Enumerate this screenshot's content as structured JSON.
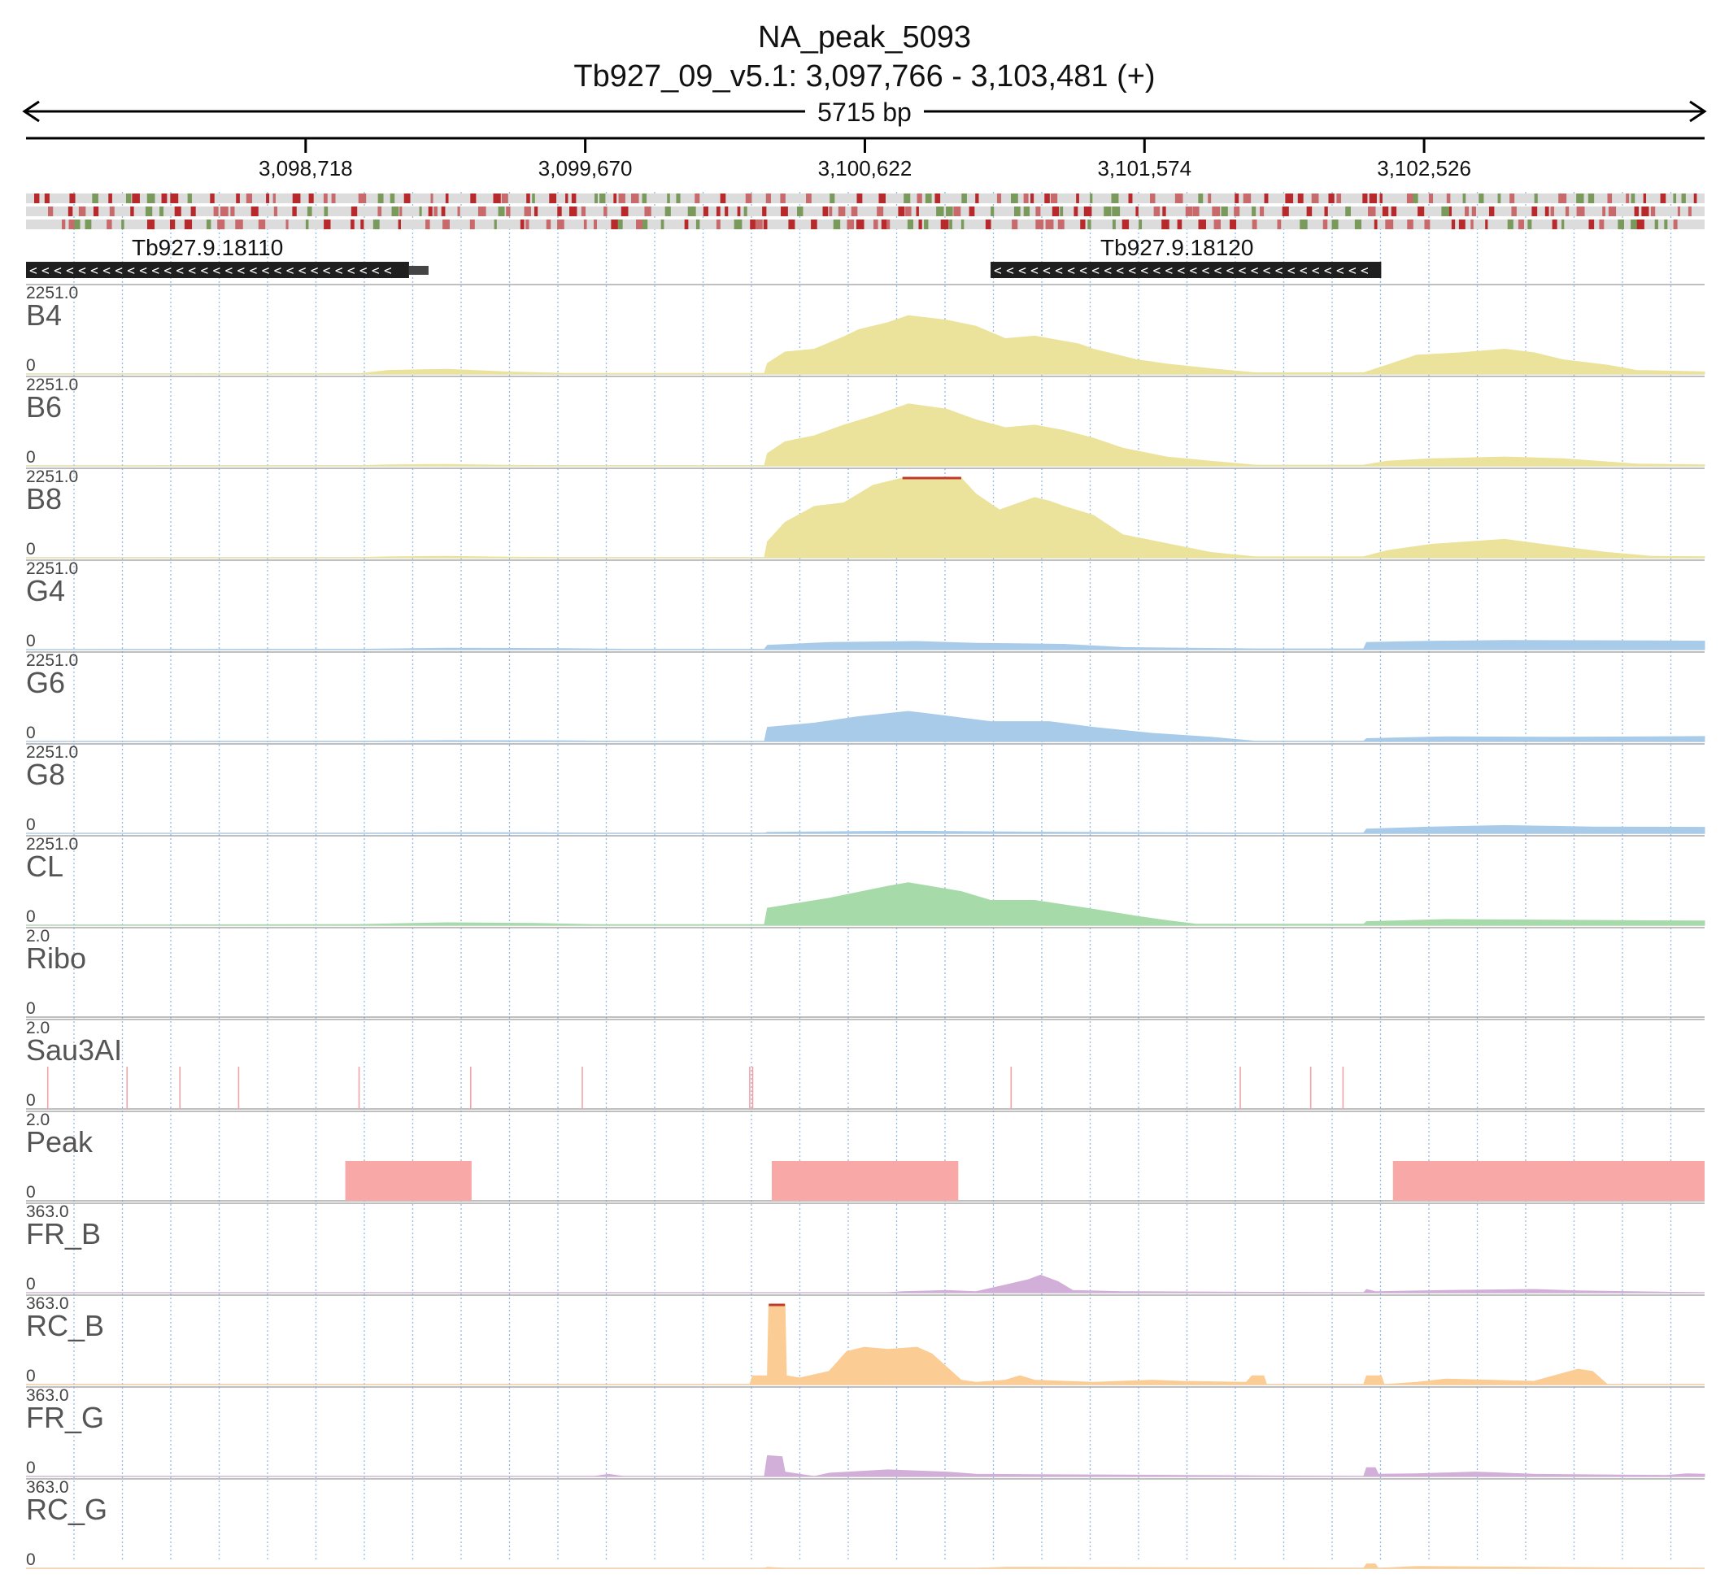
{
  "title": "NA_peak_5093",
  "region": "Tb927_09_v5.1: 3,097,766 - 3,103,481 (+)",
  "span_label": "5715 bp",
  "chart_data": {
    "type": "area",
    "genome_range": [
      3097766,
      3103481
    ],
    "ticks": [
      {
        "pos": 3098718,
        "label": "3,098,718"
      },
      {
        "pos": 3099670,
        "label": "3,099,670"
      },
      {
        "pos": 3100622,
        "label": "3,100,622"
      },
      {
        "pos": 3101574,
        "label": "3,101,574"
      },
      {
        "pos": 3102526,
        "label": "3,102,526"
      }
    ],
    "genes": [
      {
        "name": "Tb927.9.18110",
        "start": 3097766,
        "end": 3099070,
        "strand": "-"
      },
      {
        "name": "Tb927.9.18120",
        "start": 3101050,
        "end": 3102380,
        "strand": "-"
      }
    ],
    "tracks": [
      {
        "name": "B4",
        "max": "2251.0",
        "min": "0",
        "color": "#ebe39b",
        "points": [
          [
            3097766,
            0
          ],
          [
            3098900,
            10
          ],
          [
            3099000,
            100
          ],
          [
            3099200,
            130
          ],
          [
            3099400,
            60
          ],
          [
            3099600,
            15
          ],
          [
            3100280,
            15
          ],
          [
            3100290,
            300
          ],
          [
            3100350,
            620
          ],
          [
            3100450,
            700
          ],
          [
            3100550,
            1050
          ],
          [
            3100600,
            1250
          ],
          [
            3100700,
            1450
          ],
          [
            3100770,
            1650
          ],
          [
            3100900,
            1520
          ],
          [
            3101000,
            1350
          ],
          [
            3101100,
            1000
          ],
          [
            3101200,
            1070
          ],
          [
            3101350,
            850
          ],
          [
            3101400,
            700
          ],
          [
            3101500,
            500
          ],
          [
            3101550,
            400
          ],
          [
            3101650,
            280
          ],
          [
            3101800,
            150
          ],
          [
            3101950,
            35
          ],
          [
            3102320,
            35
          ],
          [
            3102400,
            250
          ],
          [
            3102500,
            530
          ],
          [
            3102650,
            600
          ],
          [
            3102800,
            700
          ],
          [
            3102900,
            600
          ],
          [
            3103000,
            400
          ],
          [
            3103150,
            250
          ],
          [
            3103250,
            100
          ],
          [
            3103481,
            60
          ]
        ]
      },
      {
        "name": "B6",
        "max": "2251.0",
        "min": "0",
        "color": "#ebe39b",
        "points": [
          [
            3097766,
            0
          ],
          [
            3098900,
            5
          ],
          [
            3099000,
            30
          ],
          [
            3099200,
            40
          ],
          [
            3099400,
            15
          ],
          [
            3099600,
            5
          ],
          [
            3100280,
            5
          ],
          [
            3100290,
            350
          ],
          [
            3100350,
            680
          ],
          [
            3100450,
            850
          ],
          [
            3100550,
            1150
          ],
          [
            3100650,
            1400
          ],
          [
            3100770,
            1750
          ],
          [
            3100900,
            1600
          ],
          [
            3101000,
            1300
          ],
          [
            3101100,
            1080
          ],
          [
            3101200,
            1150
          ],
          [
            3101300,
            1000
          ],
          [
            3101400,
            780
          ],
          [
            3101500,
            500
          ],
          [
            3101650,
            250
          ],
          [
            3101800,
            130
          ],
          [
            3101950,
            20
          ],
          [
            3102320,
            20
          ],
          [
            3102400,
            130
          ],
          [
            3102550,
            200
          ],
          [
            3102800,
            250
          ],
          [
            3103000,
            200
          ],
          [
            3103250,
            50
          ],
          [
            3103481,
            30
          ]
        ]
      },
      {
        "name": "B8",
        "max": "2251.0",
        "min": "0",
        "color": "#ebe39b",
        "points": [
          [
            3097766,
            0
          ],
          [
            3098900,
            5
          ],
          [
            3099000,
            25
          ],
          [
            3099200,
            40
          ],
          [
            3099400,
            15
          ],
          [
            3099600,
            5
          ],
          [
            3100280,
            5
          ],
          [
            3100290,
            450
          ],
          [
            3100350,
            1000
          ],
          [
            3100450,
            1450
          ],
          [
            3100550,
            1550
          ],
          [
            3100650,
            2050
          ],
          [
            3100750,
            2251
          ],
          [
            3100950,
            2251
          ],
          [
            3101000,
            1800
          ],
          [
            3101080,
            1350
          ],
          [
            3101200,
            1700
          ],
          [
            3101250,
            1600
          ],
          [
            3101300,
            1450
          ],
          [
            3101400,
            1200
          ],
          [
            3101500,
            650
          ],
          [
            3101650,
            400
          ],
          [
            3101800,
            150
          ],
          [
            3101950,
            25
          ],
          [
            3102320,
            25
          ],
          [
            3102400,
            200
          ],
          [
            3102550,
            380
          ],
          [
            3102800,
            520
          ],
          [
            3103000,
            300
          ],
          [
            3103150,
            150
          ],
          [
            3103300,
            40
          ],
          [
            3103481,
            30
          ]
        ]
      },
      {
        "name": "G4",
        "max": "2251.0",
        "min": "0",
        "color": "#a8cbea",
        "points": [
          [
            3097766,
            0
          ],
          [
            3098900,
            10
          ],
          [
            3099200,
            40
          ],
          [
            3099600,
            30
          ],
          [
            3099800,
            10
          ],
          [
            3100280,
            10
          ],
          [
            3100290,
            120
          ],
          [
            3100500,
            200
          ],
          [
            3100800,
            230
          ],
          [
            3101000,
            180
          ],
          [
            3101300,
            150
          ],
          [
            3101500,
            60
          ],
          [
            3101950,
            20
          ],
          [
            3102320,
            20
          ],
          [
            3102330,
            200
          ],
          [
            3102500,
            230
          ],
          [
            3102800,
            260
          ],
          [
            3103200,
            250
          ],
          [
            3103481,
            240
          ]
        ]
      },
      {
        "name": "G6",
        "max": "2251.0",
        "min": "0",
        "color": "#a8cbea",
        "points": [
          [
            3097766,
            0
          ],
          [
            3098900,
            10
          ],
          [
            3099200,
            25
          ],
          [
            3099600,
            20
          ],
          [
            3099800,
            5
          ],
          [
            3100280,
            5
          ],
          [
            3100290,
            400
          ],
          [
            3100450,
            520
          ],
          [
            3100600,
            700
          ],
          [
            3100770,
            850
          ],
          [
            3100900,
            720
          ],
          [
            3101050,
            560
          ],
          [
            3101250,
            560
          ],
          [
            3101400,
            400
          ],
          [
            3101600,
            230
          ],
          [
            3101800,
            120
          ],
          [
            3101950,
            10
          ],
          [
            3102320,
            10
          ],
          [
            3102330,
            80
          ],
          [
            3102600,
            130
          ],
          [
            3103000,
            120
          ],
          [
            3103481,
            140
          ]
        ]
      },
      {
        "name": "G8",
        "max": "2251.0",
        "min": "0",
        "color": "#a8cbea",
        "points": [
          [
            3097766,
            0
          ],
          [
            3098900,
            5
          ],
          [
            3099200,
            20
          ],
          [
            3099500,
            15
          ],
          [
            3099700,
            5
          ],
          [
            3100280,
            5
          ],
          [
            3100290,
            30
          ],
          [
            3100600,
            50
          ],
          [
            3100800,
            60
          ],
          [
            3101100,
            40
          ],
          [
            3101950,
            10
          ],
          [
            3102320,
            10
          ],
          [
            3102330,
            120
          ],
          [
            3102550,
            180
          ],
          [
            3102800,
            220
          ],
          [
            3103100,
            180
          ],
          [
            3103481,
            170
          ]
        ]
      },
      {
        "name": "CL",
        "max": "2251.0",
        "min": "0",
        "color": "#a6dba9",
        "points": [
          [
            3097766,
            0
          ],
          [
            3098900,
            20
          ],
          [
            3099200,
            70
          ],
          [
            3099500,
            50
          ],
          [
            3099700,
            15
          ],
          [
            3100280,
            15
          ],
          [
            3100290,
            480
          ],
          [
            3100500,
            760
          ],
          [
            3100700,
            1100
          ],
          [
            3100770,
            1200
          ],
          [
            3100950,
            950
          ],
          [
            3101050,
            700
          ],
          [
            3101200,
            700
          ],
          [
            3101400,
            450
          ],
          [
            3101550,
            250
          ],
          [
            3101650,
            130
          ],
          [
            3101750,
            30
          ],
          [
            3102320,
            30
          ],
          [
            3102330,
            100
          ],
          [
            3102600,
            160
          ],
          [
            3103000,
            140
          ],
          [
            3103481,
            120
          ]
        ]
      },
      {
        "name": "Ribo",
        "max": "2.0",
        "min": "0",
        "color": "#e0a3b5",
        "points": []
      },
      {
        "name": "Sau3AI",
        "max": "2.0",
        "min": "0",
        "color": "#f3a3a8",
        "kind": "lines",
        "sites": [
          3097840,
          3098110,
          3098290,
          3098490,
          3098900,
          3099280,
          3099660,
          3100230,
          3100240,
          3101120,
          3101900,
          3102140,
          3102250
        ]
      },
      {
        "name": "Peak",
        "max": "2.0",
        "min": "0",
        "color": "#f7a8a7",
        "kind": "blocks",
        "blocks": [
          [
            3098853,
            3099283
          ],
          [
            3100305,
            3100940
          ],
          [
            3102420,
            3103481
          ]
        ],
        "value": 1.0
      },
      {
        "name": "FR_B",
        "max": "363.0",
        "min": "0",
        "color": "#d1afd8",
        "points": [
          [
            3097766,
            0
          ],
          [
            3100700,
            0
          ],
          [
            3100750,
            5
          ],
          [
            3100900,
            10
          ],
          [
            3101000,
            5
          ],
          [
            3101100,
            35
          ],
          [
            3101180,
            60
          ],
          [
            3101220,
            80
          ],
          [
            3101280,
            50
          ],
          [
            3101330,
            10
          ],
          [
            3101500,
            5
          ],
          [
            3102320,
            0
          ],
          [
            3102330,
            15
          ],
          [
            3102360,
            5
          ],
          [
            3102600,
            10
          ],
          [
            3102900,
            15
          ],
          [
            3103050,
            8
          ],
          [
            3103481,
            0
          ]
        ]
      },
      {
        "name": "RC_B",
        "max": "363.0",
        "min": "0",
        "color": "#fbcc93",
        "points": [
          [
            3097766,
            0
          ],
          [
            3100230,
            0
          ],
          [
            3100240,
            40
          ],
          [
            3100290,
            40
          ],
          [
            3100295,
            363
          ],
          [
            3100350,
            363
          ],
          [
            3100355,
            40
          ],
          [
            3100400,
            30
          ],
          [
            3100500,
            60
          ],
          [
            3100560,
            150
          ],
          [
            3100620,
            170
          ],
          [
            3100700,
            160
          ],
          [
            3100800,
            170
          ],
          [
            3100850,
            140
          ],
          [
            3100900,
            80
          ],
          [
            3100950,
            20
          ],
          [
            3101000,
            10
          ],
          [
            3101100,
            20
          ],
          [
            3101150,
            40
          ],
          [
            3101200,
            20
          ],
          [
            3101400,
            10
          ],
          [
            3101600,
            20
          ],
          [
            3101700,
            15
          ],
          [
            3101920,
            10
          ],
          [
            3101940,
            40
          ],
          [
            3101980,
            40
          ],
          [
            3101990,
            0
          ],
          [
            3102320,
            0
          ],
          [
            3102330,
            40
          ],
          [
            3102380,
            40
          ],
          [
            3102390,
            0
          ],
          [
            3102500,
            10
          ],
          [
            3102600,
            25
          ],
          [
            3102900,
            15
          ],
          [
            3103050,
            70
          ],
          [
            3103100,
            60
          ],
          [
            3103150,
            0
          ],
          [
            3103481,
            0
          ]
        ]
      },
      {
        "name": "FR_G",
        "max": "363.0",
        "min": "0",
        "color": "#d1afd8",
        "points": [
          [
            3097766,
            0
          ],
          [
            3099700,
            0
          ],
          [
            3099750,
            10
          ],
          [
            3099800,
            0
          ],
          [
            3100280,
            0
          ],
          [
            3100290,
            95
          ],
          [
            3100340,
            90
          ],
          [
            3100350,
            20
          ],
          [
            3100450,
            0
          ],
          [
            3100500,
            15
          ],
          [
            3100700,
            30
          ],
          [
            3100900,
            20
          ],
          [
            3101000,
            10
          ],
          [
            3102320,
            0
          ],
          [
            3102330,
            40
          ],
          [
            3102360,
            40
          ],
          [
            3102370,
            10
          ],
          [
            3102500,
            12
          ],
          [
            3102700,
            20
          ],
          [
            3102900,
            10
          ],
          [
            3103350,
            5
          ],
          [
            3103420,
            12
          ],
          [
            3103481,
            10
          ]
        ]
      },
      {
        "name": "RC_G",
        "max": "363.0",
        "min": "0",
        "color": "#fbcc93",
        "points": [
          [
            3097766,
            0
          ],
          [
            3100280,
            0
          ],
          [
            3100290,
            5
          ],
          [
            3100350,
            0
          ],
          [
            3101000,
            0
          ],
          [
            3101100,
            5
          ],
          [
            3102320,
            0
          ],
          [
            3102330,
            20
          ],
          [
            3102360,
            20
          ],
          [
            3102370,
            0
          ],
          [
            3102500,
            8
          ],
          [
            3102900,
            5
          ],
          [
            3103481,
            0
          ]
        ]
      }
    ]
  }
}
